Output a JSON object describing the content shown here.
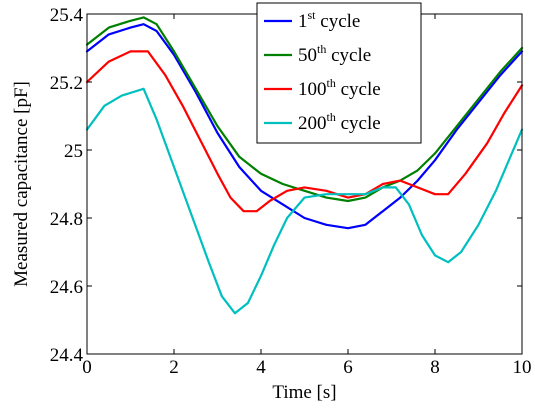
{
  "chart_data": {
    "type": "line",
    "title": "",
    "xlabel": "Time [s]",
    "ylabel": "Measured capacitance [pF]",
    "xlim": [
      0,
      10
    ],
    "ylim": [
      24.4,
      25.4
    ],
    "x_ticks": [
      "0",
      "2",
      "4",
      "6",
      "8",
      "10"
    ],
    "y_ticks": [
      "24.4",
      "24.6",
      "24.8",
      "25",
      "25.2",
      "25.4"
    ],
    "grid": false,
    "legend_position": "top-right",
    "series": [
      {
        "name": "1st cycle",
        "label_base": "1",
        "label_sup": "st",
        "label_rest": " cycle",
        "color": "#0000ff",
        "points": [
          [
            0,
            25.29
          ],
          [
            0.5,
            25.34
          ],
          [
            1.0,
            25.36
          ],
          [
            1.3,
            25.37
          ],
          [
            1.6,
            25.35
          ],
          [
            2.0,
            25.28
          ],
          [
            2.5,
            25.17
          ],
          [
            3.0,
            25.05
          ],
          [
            3.5,
            24.95
          ],
          [
            4.0,
            24.88
          ],
          [
            4.5,
            24.84
          ],
          [
            5.0,
            24.8
          ],
          [
            5.5,
            24.78
          ],
          [
            6.0,
            24.77
          ],
          [
            6.4,
            24.78
          ],
          [
            6.8,
            24.82
          ],
          [
            7.2,
            24.86
          ],
          [
            7.6,
            24.91
          ],
          [
            8.0,
            24.97
          ],
          [
            8.5,
            25.06
          ],
          [
            9.0,
            25.14
          ],
          [
            9.5,
            25.22
          ],
          [
            10.0,
            25.29
          ]
        ]
      },
      {
        "name": "50th cycle",
        "label_base": "50",
        "label_sup": "th",
        "label_rest": " cycle",
        "color": "#008000",
        "points": [
          [
            0,
            25.31
          ],
          [
            0.5,
            25.36
          ],
          [
            1.0,
            25.38
          ],
          [
            1.3,
            25.39
          ],
          [
            1.6,
            25.37
          ],
          [
            2.0,
            25.29
          ],
          [
            2.5,
            25.18
          ],
          [
            3.0,
            25.07
          ],
          [
            3.5,
            24.98
          ],
          [
            4.0,
            24.93
          ],
          [
            4.5,
            24.9
          ],
          [
            5.0,
            24.88
          ],
          [
            5.5,
            24.86
          ],
          [
            6.0,
            24.85
          ],
          [
            6.4,
            24.86
          ],
          [
            6.8,
            24.89
          ],
          [
            7.2,
            24.91
          ],
          [
            7.6,
            24.94
          ],
          [
            8.0,
            24.99
          ],
          [
            8.5,
            25.07
          ],
          [
            9.0,
            25.15
          ],
          [
            9.5,
            25.23
          ],
          [
            10.0,
            25.3
          ]
        ]
      },
      {
        "name": "100th cycle",
        "label_base": "100",
        "label_sup": "th",
        "label_rest": " cycle",
        "color": "#ff0000",
        "points": [
          [
            0,
            25.2
          ],
          [
            0.5,
            25.26
          ],
          [
            1.0,
            25.29
          ],
          [
            1.4,
            25.29
          ],
          [
            1.8,
            25.22
          ],
          [
            2.2,
            25.13
          ],
          [
            2.6,
            25.03
          ],
          [
            3.0,
            24.93
          ],
          [
            3.3,
            24.86
          ],
          [
            3.6,
            24.82
          ],
          [
            3.9,
            24.82
          ],
          [
            4.2,
            24.85
          ],
          [
            4.6,
            24.88
          ],
          [
            5.0,
            24.89
          ],
          [
            5.5,
            24.88
          ],
          [
            6.0,
            24.86
          ],
          [
            6.4,
            24.87
          ],
          [
            6.8,
            24.9
          ],
          [
            7.2,
            24.91
          ],
          [
            7.6,
            24.89
          ],
          [
            8.0,
            24.87
          ],
          [
            8.3,
            24.87
          ],
          [
            8.7,
            24.93
          ],
          [
            9.2,
            25.02
          ],
          [
            9.6,
            25.11
          ],
          [
            10.0,
            25.19
          ]
        ]
      },
      {
        "name": "200th cycle",
        "label_base": "200",
        "label_sup": "th",
        "label_rest": " cycle",
        "color": "#00bfbf",
        "points": [
          [
            0,
            25.06
          ],
          [
            0.4,
            25.13
          ],
          [
            0.8,
            25.16
          ],
          [
            1.3,
            25.18
          ],
          [
            1.6,
            25.09
          ],
          [
            2.0,
            24.95
          ],
          [
            2.4,
            24.81
          ],
          [
            2.8,
            24.67
          ],
          [
            3.1,
            24.57
          ],
          [
            3.4,
            24.52
          ],
          [
            3.7,
            24.55
          ],
          [
            4.0,
            24.63
          ],
          [
            4.3,
            24.72
          ],
          [
            4.6,
            24.8
          ],
          [
            5.0,
            24.86
          ],
          [
            5.5,
            24.87
          ],
          [
            6.0,
            24.87
          ],
          [
            6.4,
            24.87
          ],
          [
            6.8,
            24.89
          ],
          [
            7.1,
            24.89
          ],
          [
            7.4,
            24.84
          ],
          [
            7.7,
            24.75
          ],
          [
            8.0,
            24.69
          ],
          [
            8.3,
            24.67
          ],
          [
            8.6,
            24.7
          ],
          [
            9.0,
            24.78
          ],
          [
            9.4,
            24.88
          ],
          [
            9.7,
            24.97
          ],
          [
            10.0,
            25.06
          ]
        ]
      }
    ]
  }
}
